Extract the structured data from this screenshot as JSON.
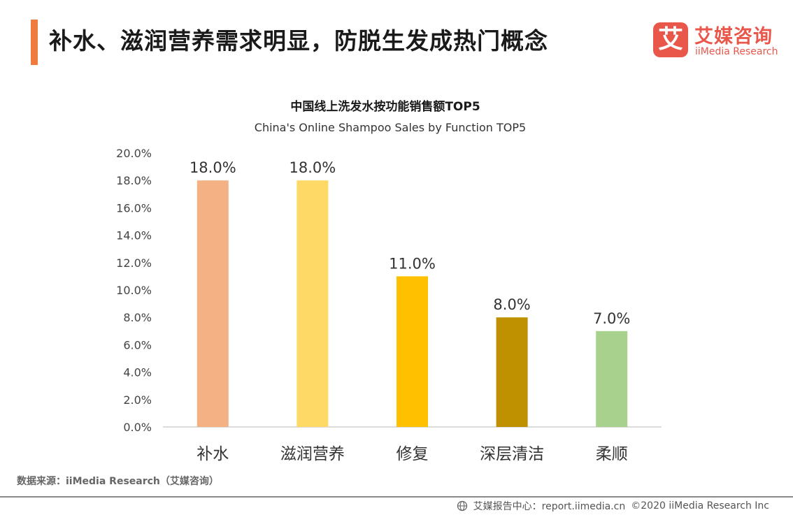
{
  "header": {
    "title": "补水、滋润营养需求明显，防脱生发成热门概念"
  },
  "logo": {
    "mark": "艾",
    "name_cn": "艾媒咨询",
    "name_en": "iiMedia Research"
  },
  "chart_data": {
    "type": "bar",
    "title": "中国线上洗发水按功能销售额TOP5",
    "subtitle": "China's Online Shampoo Sales by Function TOP5",
    "categories": [
      "补水",
      "滋润营养",
      "修复",
      "深层清洁",
      "柔顺"
    ],
    "values": [
      18.0,
      18.0,
      11.0,
      8.0,
      7.0
    ],
    "value_labels": [
      "18.0%",
      "18.0%",
      "11.0%",
      "8.0%",
      "7.0%"
    ],
    "bar_colors": [
      "#f4b183",
      "#ffd966",
      "#ffc000",
      "#bf9000",
      "#a9d18e"
    ],
    "ylim": [
      0,
      20
    ],
    "yticks": [
      "0.0%",
      "2.0%",
      "4.0%",
      "6.0%",
      "8.0%",
      "10.0%",
      "12.0%",
      "14.0%",
      "16.0%",
      "18.0%",
      "20.0%"
    ],
    "xlabel": "",
    "ylabel": "",
    "grid": false
  },
  "footer": {
    "source": "数据来源：iiMedia Research（艾媒咨询）",
    "report_center": "艾媒报告中心：report.iimedia.cn",
    "copyright": "©2020  iiMedia Research  Inc"
  }
}
